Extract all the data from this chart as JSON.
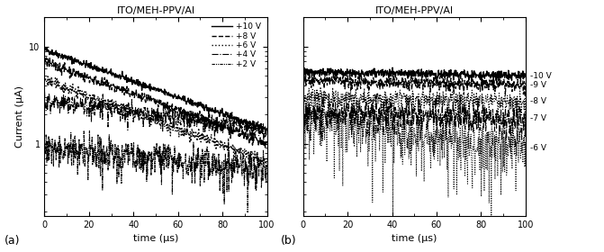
{
  "title_a": "ITO/MEH-PPV/Al",
  "title_b": "ITO/MEH-PPV/Al",
  "xlabel": "time (μs)",
  "ylabel": "Current (μA)",
  "label_a": "(a)",
  "label_b": "(b)",
  "xlim": [
    0,
    100
  ],
  "ylim_log": [
    0.18,
    20
  ],
  "panel_a": {
    "curves": [
      {
        "label": "+10 V",
        "linestyle": "solid",
        "start": 9.3,
        "end": 1.4,
        "noise": 0.04,
        "lw": 1.0
      },
      {
        "label": "+8 V",
        "linestyle": "dashed",
        "start": 7.0,
        "end": 1.0,
        "noise": 0.06,
        "lw": 1.0
      },
      {
        "label": "+6 V",
        "linestyle": "dotted",
        "start": 4.5,
        "end": 0.65,
        "noise": 0.07,
        "lw": 1.0
      },
      {
        "label": "+4 V",
        "linestyle": "dashdot",
        "start": 2.8,
        "end": 1.4,
        "noise": 0.12,
        "lw": 0.8
      },
      {
        "label": "+2 V",
        "linestyle": "ddot",
        "start": 0.9,
        "end": 0.55,
        "noise": 0.22,
        "lw": 0.8
      }
    ]
  },
  "panel_b": {
    "curves": [
      {
        "label": "-10 V",
        "linestyle": "solid",
        "start": 5.5,
        "end": 5.0,
        "noise": 0.05,
        "lw": 1.0
      },
      {
        "label": "-9 V",
        "linestyle": "dashed",
        "start": 4.5,
        "end": 4.0,
        "noise": 0.08,
        "lw": 0.9
      },
      {
        "label": "-8 V",
        "linestyle": "dotted",
        "start": 3.0,
        "end": 2.7,
        "noise": 0.13,
        "lw": 0.8
      },
      {
        "label": "-7 V",
        "linestyle": "dashdot",
        "start": 2.1,
        "end": 1.8,
        "noise": 0.18,
        "lw": 0.8
      },
      {
        "label": "-6 V",
        "linestyle": "dotted",
        "start": 1.7,
        "end": 0.9,
        "noise": 0.3,
        "lw": 0.7
      }
    ]
  }
}
